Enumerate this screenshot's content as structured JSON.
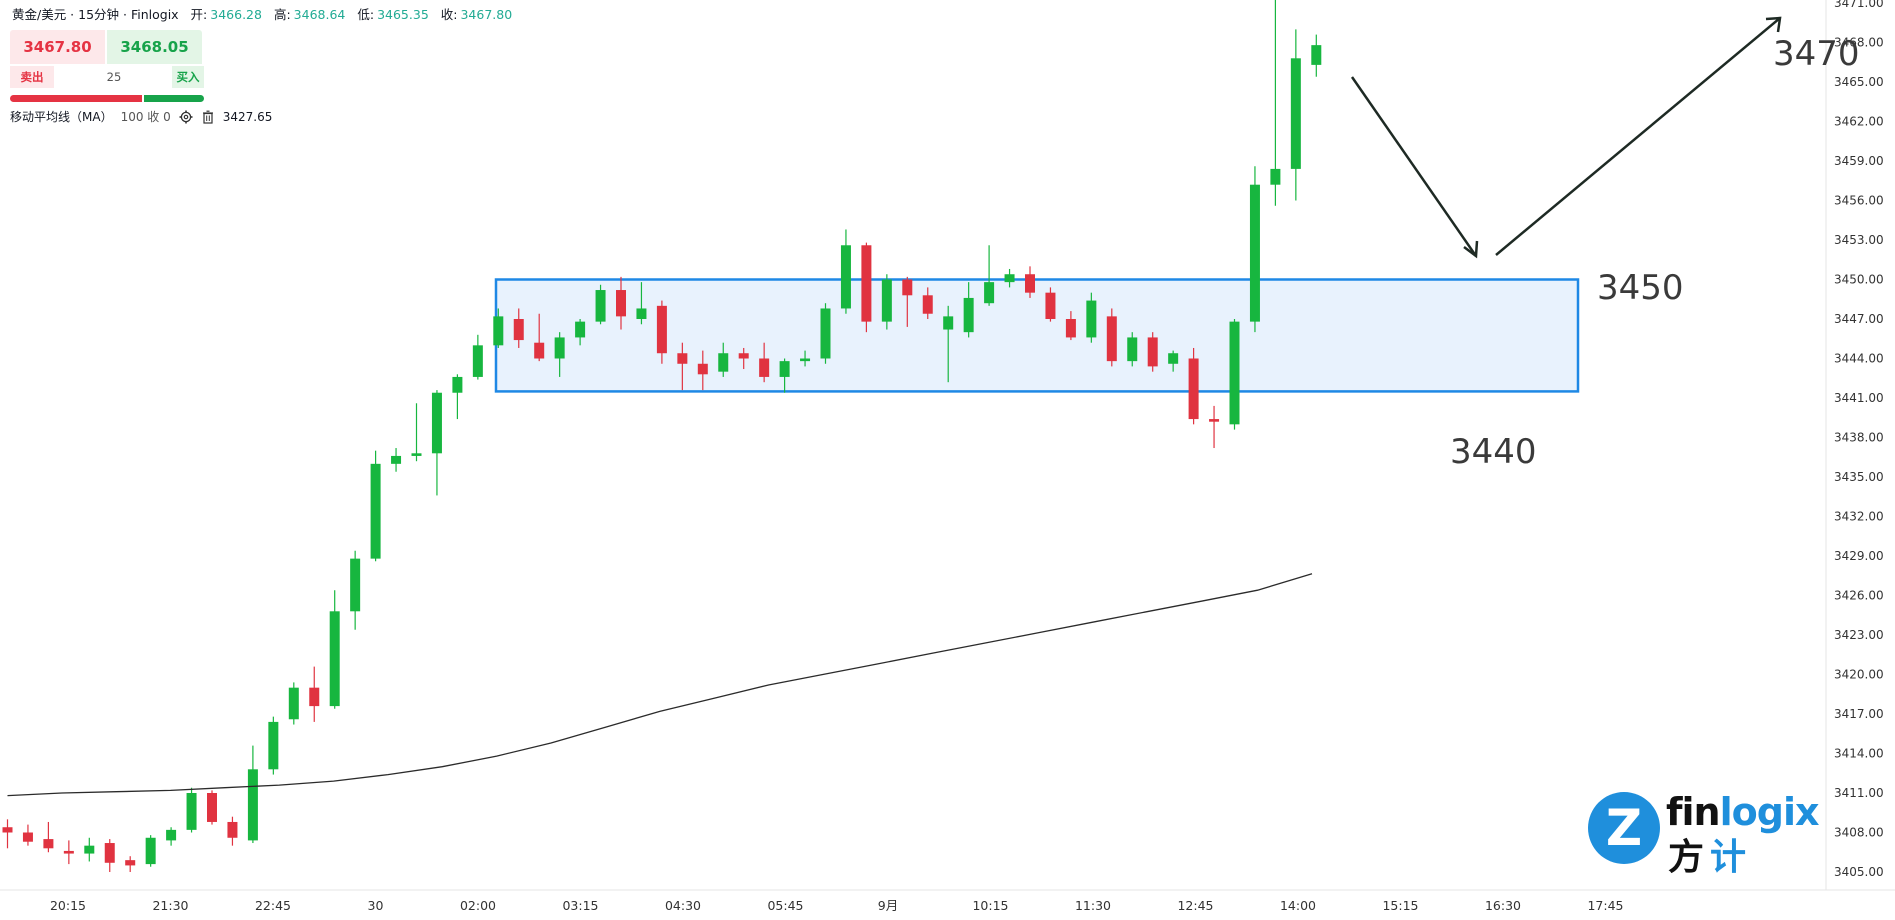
{
  "header": {
    "symbol": "黄金/美元 · 15分钟 · Finlogix",
    "open_label": "开:",
    "open": "3466.28",
    "high_label": "高:",
    "high": "3468.64",
    "low_label": "低:",
    "low": "3465.35",
    "close_label": "收:",
    "close": "3467.80"
  },
  "trade": {
    "sell_price": "3467.80",
    "buy_price": "3468.05",
    "sell_label": "卖出",
    "buy_label": "买入",
    "quantity": "25"
  },
  "indicator": {
    "name": "移动平均线（MA）",
    "params": "100 收 0",
    "value": "3427.65"
  },
  "levels": {
    "upper": "3450",
    "lower": "3440",
    "target": "3470"
  },
  "logo": {
    "word_a": "fin",
    "word_b": "logix",
    "cn_a": "方",
    "cn_b": "计",
    "mark": "Z"
  },
  "colors": {
    "up": "#17b63f",
    "down": "#e03340",
    "zone_fill": "#e8f2fd",
    "zone_border": "#1e88e5",
    "ma_line": "#2b2b2b"
  },
  "chart_data": {
    "type": "candlestick",
    "y_axis_ticks": [
      "3471.00",
      "3468.00",
      "3465.00",
      "3462.00",
      "3459.00",
      "3456.00",
      "3453.00",
      "3450.00",
      "3447.00",
      "3444.00",
      "3441.00",
      "3438.00",
      "3435.00",
      "3432.00",
      "3429.00",
      "3426.00",
      "3423.00",
      "3420.00",
      "3417.00",
      "3414.00",
      "3411.00",
      "3408.00",
      "3405.00"
    ],
    "ylim": [
      3403.5,
      3471.5
    ],
    "x_axis_labels": [
      "20:15",
      "21:30",
      "22:45",
      "30",
      "02:00",
      "03:15",
      "04:30",
      "05:45",
      "9月",
      "10:15",
      "11:30",
      "12:45",
      "14:00",
      "15:15",
      "16:30",
      "17:45"
    ],
    "candles": [
      {
        "o": 3408.4,
        "h": 3409.0,
        "l": 3406.8,
        "c": 3408.0
      },
      {
        "o": 3408.0,
        "h": 3408.6,
        "l": 3407.0,
        "c": 3407.3
      },
      {
        "o": 3407.5,
        "h": 3408.8,
        "l": 3406.5,
        "c": 3406.8
      },
      {
        "o": 3406.6,
        "h": 3407.4,
        "l": 3405.6,
        "c": 3406.4
      },
      {
        "o": 3406.4,
        "h": 3407.6,
        "l": 3405.8,
        "c": 3407.0
      },
      {
        "o": 3407.2,
        "h": 3407.5,
        "l": 3405.0,
        "c": 3405.7
      },
      {
        "o": 3405.9,
        "h": 3406.2,
        "l": 3405.0,
        "c": 3405.5
      },
      {
        "o": 3405.6,
        "h": 3407.8,
        "l": 3405.4,
        "c": 3407.6
      },
      {
        "o": 3407.4,
        "h": 3408.4,
        "l": 3407.0,
        "c": 3408.2
      },
      {
        "o": 3408.2,
        "h": 3411.4,
        "l": 3408.0,
        "c": 3411.0
      },
      {
        "o": 3411.0,
        "h": 3411.2,
        "l": 3408.6,
        "c": 3408.8
      },
      {
        "o": 3408.8,
        "h": 3409.2,
        "l": 3407.0,
        "c": 3407.6
      },
      {
        "o": 3407.4,
        "h": 3414.6,
        "l": 3407.2,
        "c": 3412.8
      },
      {
        "o": 3412.8,
        "h": 3416.8,
        "l": 3412.4,
        "c": 3416.4
      },
      {
        "o": 3416.6,
        "h": 3419.4,
        "l": 3416.2,
        "c": 3419.0
      },
      {
        "o": 3419.0,
        "h": 3420.6,
        "l": 3416.4,
        "c": 3417.6
      },
      {
        "o": 3417.6,
        "h": 3426.4,
        "l": 3417.4,
        "c": 3424.8
      },
      {
        "o": 3424.8,
        "h": 3429.4,
        "l": 3423.4,
        "c": 3428.8
      },
      {
        "o": 3428.8,
        "h": 3437.0,
        "l": 3428.6,
        "c": 3436.0
      },
      {
        "o": 3436.0,
        "h": 3437.2,
        "l": 3435.4,
        "c": 3436.6
      },
      {
        "o": 3436.6,
        "h": 3440.6,
        "l": 3436.2,
        "c": 3436.8
      },
      {
        "o": 3436.8,
        "h": 3441.6,
        "l": 3433.6,
        "c": 3441.4
      },
      {
        "o": 3441.4,
        "h": 3442.8,
        "l": 3439.4,
        "c": 3442.6
      },
      {
        "o": 3442.6,
        "h": 3445.8,
        "l": 3442.4,
        "c": 3445.0
      },
      {
        "o": 3445.0,
        "h": 3447.8,
        "l": 3444.8,
        "c": 3447.2
      },
      {
        "o": 3447.0,
        "h": 3447.8,
        "l": 3444.8,
        "c": 3445.4
      },
      {
        "o": 3445.2,
        "h": 3447.4,
        "l": 3443.8,
        "c": 3444.0
      },
      {
        "o": 3444.0,
        "h": 3446.0,
        "l": 3442.6,
        "c": 3445.6
      },
      {
        "o": 3445.6,
        "h": 3447.0,
        "l": 3445.0,
        "c": 3446.8
      },
      {
        "o": 3446.8,
        "h": 3449.6,
        "l": 3446.6,
        "c": 3449.2
      },
      {
        "o": 3449.2,
        "h": 3450.2,
        "l": 3446.2,
        "c": 3447.2
      },
      {
        "o": 3447.0,
        "h": 3449.8,
        "l": 3446.6,
        "c": 3447.8
      },
      {
        "o": 3448.0,
        "h": 3448.4,
        "l": 3443.6,
        "c": 3444.4
      },
      {
        "o": 3444.4,
        "h": 3445.2,
        "l": 3441.6,
        "c": 3443.6
      },
      {
        "o": 3443.6,
        "h": 3444.6,
        "l": 3441.6,
        "c": 3442.8
      },
      {
        "o": 3443.0,
        "h": 3445.2,
        "l": 3442.6,
        "c": 3444.4
      },
      {
        "o": 3444.4,
        "h": 3444.8,
        "l": 3443.2,
        "c": 3444.0
      },
      {
        "o": 3444.0,
        "h": 3445.2,
        "l": 3442.2,
        "c": 3442.6
      },
      {
        "o": 3442.6,
        "h": 3444.0,
        "l": 3441.4,
        "c": 3443.8
      },
      {
        "o": 3443.8,
        "h": 3444.6,
        "l": 3443.4,
        "c": 3444.0
      },
      {
        "o": 3444.0,
        "h": 3448.2,
        "l": 3443.6,
        "c": 3447.8
      },
      {
        "o": 3447.8,
        "h": 3453.8,
        "l": 3447.4,
        "c": 3452.6
      },
      {
        "o": 3452.6,
        "h": 3452.8,
        "l": 3446.0,
        "c": 3446.8
      },
      {
        "o": 3446.8,
        "h": 3450.4,
        "l": 3446.2,
        "c": 3450.0
      },
      {
        "o": 3450.0,
        "h": 3450.2,
        "l": 3446.4,
        "c": 3448.8
      },
      {
        "o": 3448.8,
        "h": 3449.4,
        "l": 3447.0,
        "c": 3447.4
      },
      {
        "o": 3446.2,
        "h": 3448.0,
        "l": 3442.2,
        "c": 3447.2
      },
      {
        "o": 3446.0,
        "h": 3449.8,
        "l": 3445.6,
        "c": 3448.6
      },
      {
        "o": 3448.2,
        "h": 3452.6,
        "l": 3448.0,
        "c": 3449.8
      },
      {
        "o": 3449.8,
        "h": 3450.8,
        "l": 3449.4,
        "c": 3450.4
      },
      {
        "o": 3450.4,
        "h": 3451.0,
        "l": 3448.6,
        "c": 3449.0
      },
      {
        "o": 3449.0,
        "h": 3449.4,
        "l": 3446.8,
        "c": 3447.0
      },
      {
        "o": 3447.0,
        "h": 3447.6,
        "l": 3445.4,
        "c": 3445.6
      },
      {
        "o": 3445.6,
        "h": 3449.0,
        "l": 3445.2,
        "c": 3448.4
      },
      {
        "o": 3447.2,
        "h": 3447.8,
        "l": 3443.4,
        "c": 3443.8
      },
      {
        "o": 3443.8,
        "h": 3446.0,
        "l": 3443.4,
        "c": 3445.6
      },
      {
        "o": 3445.6,
        "h": 3446.0,
        "l": 3443.0,
        "c": 3443.4
      },
      {
        "o": 3443.6,
        "h": 3444.6,
        "l": 3443.0,
        "c": 3444.4
      },
      {
        "o": 3444.0,
        "h": 3444.8,
        "l": 3439.0,
        "c": 3439.4
      },
      {
        "o": 3439.4,
        "h": 3440.4,
        "l": 3437.2,
        "c": 3439.2
      },
      {
        "o": 3439.0,
        "h": 3447.0,
        "l": 3438.6,
        "c": 3446.8
      },
      {
        "o": 3446.8,
        "h": 3458.6,
        "l": 3446.0,
        "c": 3457.2
      },
      {
        "o": 3457.2,
        "h": 3472.0,
        "l": 3455.6,
        "c": 3458.4
      },
      {
        "o": 3458.4,
        "h": 3469.0,
        "l": 3456.0,
        "c": 3466.8
      },
      {
        "o": 3466.3,
        "h": 3468.6,
        "l": 3465.4,
        "c": 3467.8
      }
    ],
    "moving_average": {
      "name": "MA 100",
      "last": 3427.65,
      "values": [
        3410.8,
        3411.0,
        3411.1,
        3411.2,
        3411.4,
        3411.6,
        3411.9,
        3412.4,
        3413.0,
        3413.8,
        3414.8,
        3416.0,
        3417.2,
        3418.2,
        3419.2,
        3420.0,
        3420.8,
        3421.6,
        3422.4,
        3423.2,
        3424.0,
        3424.8,
        3425.6,
        3426.4,
        3427.65
      ]
    }
  }
}
